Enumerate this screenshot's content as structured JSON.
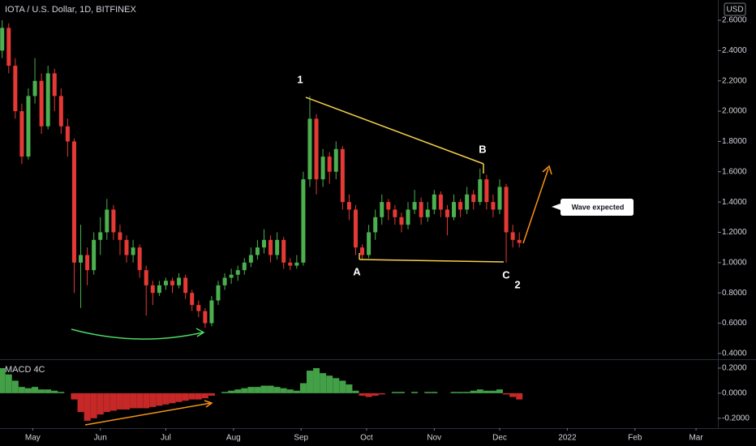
{
  "chart_data": [
    {
      "type": "candlestick",
      "title": "IOTA / U.S. Dollar, 1D, BITFINEX",
      "currency": "USD",
      "up_color": "#4caf50",
      "down_color": "#e53935",
      "x": [
        107,
        110,
        113,
        116,
        119,
        122,
        125,
        128,
        131,
        134,
        137,
        140,
        143,
        146,
        149,
        152,
        155,
        158,
        161,
        164,
        167,
        170,
        173,
        176,
        179,
        182,
        185,
        188,
        191,
        194,
        197,
        200,
        203,
        206,
        209,
        212,
        215,
        218,
        221,
        224,
        227,
        230,
        233,
        236,
        239,
        242,
        245,
        248,
        251,
        254,
        257,
        260,
        263,
        266,
        269,
        272,
        275,
        278,
        281,
        284,
        287,
        290,
        293,
        296,
        299,
        302,
        305,
        308,
        311,
        314,
        317,
        320,
        323,
        326,
        329,
        332,
        335,
        338,
        341,
        344
      ],
      "open": [
        2.4,
        2.55,
        2.3,
        2.0,
        1.7,
        2.1,
        2.2,
        1.9,
        2.25,
        2.1,
        1.9,
        1.8,
        1.0,
        1.05,
        0.95,
        1.15,
        1.2,
        1.35,
        1.2,
        1.15,
        1.05,
        1.1,
        0.95,
        0.85,
        0.8,
        0.85,
        0.88,
        0.85,
        0.9,
        0.8,
        0.72,
        0.68,
        0.6,
        0.75,
        0.85,
        0.9,
        0.92,
        0.95,
        1.0,
        1.05,
        1.1,
        1.15,
        1.05,
        1.15,
        1.0,
        0.98,
        1.0,
        1.55,
        1.95,
        1.55,
        1.7,
        1.6,
        1.75,
        1.4,
        1.35,
        1.1,
        1.05,
        1.2,
        1.3,
        1.4,
        1.35,
        1.3,
        1.25,
        1.35,
        1.4,
        1.3,
        1.35,
        1.45,
        1.35,
        1.3,
        1.4,
        1.35,
        1.45,
        1.4,
        1.55,
        1.4,
        1.35,
        1.5,
        1.2,
        1.15
      ],
      "high": [
        2.6,
        2.58,
        2.35,
        2.05,
        2.15,
        2.35,
        2.25,
        2.3,
        2.28,
        2.15,
        1.95,
        1.82,
        1.25,
        1.1,
        1.2,
        1.3,
        1.42,
        1.38,
        1.25,
        1.18,
        1.15,
        1.12,
        0.98,
        0.88,
        0.88,
        0.9,
        0.9,
        0.93,
        0.92,
        0.82,
        0.75,
        0.7,
        0.78,
        0.88,
        0.93,
        0.96,
        0.98,
        1.03,
        1.1,
        1.15,
        1.22,
        1.18,
        1.2,
        1.17,
        1.03,
        1.05,
        1.6,
        2.1,
        1.98,
        1.75,
        1.73,
        1.8,
        1.77,
        1.45,
        1.38,
        1.12,
        1.25,
        1.35,
        1.45,
        1.42,
        1.38,
        1.33,
        1.4,
        1.48,
        1.43,
        1.4,
        1.48,
        1.47,
        1.38,
        1.45,
        1.42,
        1.5,
        1.48,
        1.62,
        1.58,
        1.45,
        1.55,
        1.52,
        1.25,
        1.2
      ],
      "low": [
        2.35,
        2.25,
        1.95,
        1.65,
        1.68,
        2.05,
        1.85,
        1.88,
        2.0,
        1.85,
        1.7,
        0.8,
        0.7,
        0.85,
        0.92,
        1.05,
        1.15,
        1.15,
        1.05,
        1.0,
        1.0,
        0.9,
        0.65,
        0.72,
        0.78,
        0.82,
        0.8,
        0.83,
        0.76,
        0.68,
        0.64,
        0.57,
        0.58,
        0.72,
        0.82,
        0.86,
        0.88,
        0.92,
        0.97,
        1.02,
        1.06,
        1.0,
        1.02,
        0.96,
        0.95,
        0.96,
        0.98,
        1.5,
        1.45,
        1.5,
        1.52,
        1.55,
        1.35,
        1.28,
        1.05,
        1.02,
        1.03,
        1.15,
        1.25,
        1.28,
        1.25,
        1.2,
        1.22,
        1.32,
        1.25,
        1.27,
        1.32,
        1.3,
        1.18,
        1.28,
        1.3,
        1.32,
        1.35,
        1.38,
        1.35,
        1.3,
        1.32,
        1.0,
        1.1,
        1.1
      ],
      "close": [
        2.55,
        2.3,
        2.0,
        1.7,
        2.1,
        2.2,
        1.9,
        2.25,
        2.1,
        1.9,
        1.8,
        1.0,
        1.05,
        0.95,
        1.15,
        1.2,
        1.35,
        1.2,
        1.15,
        1.05,
        1.1,
        0.95,
        0.85,
        0.8,
        0.85,
        0.88,
        0.85,
        0.9,
        0.8,
        0.72,
        0.68,
        0.6,
        0.75,
        0.85,
        0.9,
        0.92,
        0.95,
        1.0,
        1.05,
        1.1,
        1.15,
        1.05,
        1.15,
        1.0,
        0.98,
        1.0,
        1.55,
        1.95,
        1.55,
        1.7,
        1.6,
        1.75,
        1.4,
        1.35,
        1.1,
        1.05,
        1.2,
        1.3,
        1.4,
        1.35,
        1.3,
        1.25,
        1.35,
        1.4,
        1.3,
        1.35,
        1.45,
        1.35,
        1.3,
        1.4,
        1.35,
        1.45,
        1.4,
        1.55,
        1.4,
        1.35,
        1.5,
        1.2,
        1.15,
        1.13
      ],
      "xlim": [
        106,
        435
      ],
      "xticks": [
        {
          "value": 121,
          "label": "May"
        },
        {
          "value": 152,
          "label": "Jun"
        },
        {
          "value": 182,
          "label": "Jul"
        },
        {
          "value": 213,
          "label": "Aug"
        },
        {
          "value": 244,
          "label": "Sep"
        },
        {
          "value": 274,
          "label": "Oct"
        },
        {
          "value": 305,
          "label": "Nov"
        },
        {
          "value": 335,
          "label": "Dec"
        },
        {
          "value": 366,
          "label": "2022"
        },
        {
          "value": 397,
          "label": "Feb"
        },
        {
          "value": 425,
          "label": "Mar"
        }
      ],
      "ylim": [
        0.378,
        2.734
      ],
      "yticks": [
        {
          "value": 2.6,
          "label": "2.6000"
        },
        {
          "value": 2.4,
          "label": "2.4000"
        },
        {
          "value": 2.2,
          "label": "2.2000"
        },
        {
          "value": 2.0,
          "label": "2.0000"
        },
        {
          "value": 1.8,
          "label": "1.8000"
        },
        {
          "value": 1.6,
          "label": "1.6000"
        },
        {
          "value": 1.4,
          "label": "1.4000"
        },
        {
          "value": 1.2,
          "label": "1.2000"
        },
        {
          "value": 1.0,
          "label": "1.0000"
        },
        {
          "value": 0.8,
          "label": "0.8000"
        },
        {
          "value": 0.6,
          "label": "0.6000"
        },
        {
          "value": 0.4,
          "label": "0.4000"
        }
      ],
      "annotations": [
        "1",
        "B",
        "A",
        "C",
        "2",
        "Wave expected"
      ]
    },
    {
      "type": "bar",
      "title": "MACD 4C",
      "pos_color": "#43a047",
      "neg_color": "#c62828",
      "values": [
        0.2,
        0.15,
        0.1,
        0.05,
        0.04,
        0.05,
        0.03,
        0.03,
        0.02,
        0.01,
        0.0,
        -0.05,
        -0.15,
        -0.22,
        -0.2,
        -0.17,
        -0.15,
        -0.14,
        -0.13,
        -0.13,
        -0.12,
        -0.12,
        -0.12,
        -0.11,
        -0.1,
        -0.09,
        -0.08,
        -0.07,
        -0.06,
        -0.05,
        -0.05,
        -0.04,
        -0.02,
        0.0,
        0.01,
        0.02,
        0.03,
        0.04,
        0.05,
        0.05,
        0.06,
        0.06,
        0.05,
        0.04,
        0.03,
        0.02,
        0.08,
        0.18,
        0.2,
        0.16,
        0.14,
        0.12,
        0.1,
        0.07,
        0.02,
        -0.02,
        -0.03,
        -0.02,
        -0.01,
        0.0,
        0.01,
        0.01,
        0.0,
        0.01,
        0.0,
        0.01,
        0.01,
        0.0,
        0.0,
        0.01,
        0.01,
        0.01,
        0.02,
        0.03,
        0.02,
        0.02,
        0.03,
        -0.01,
        -0.03,
        -0.05
      ],
      "ylim": [
        -0.24,
        0.245
      ],
      "yticks": [
        {
          "value": 0.2,
          "label": "0.2000"
        },
        {
          "value": 0.0,
          "label": "0.0000"
        },
        {
          "value": -0.2,
          "label": "-0.2000"
        }
      ]
    }
  ]
}
